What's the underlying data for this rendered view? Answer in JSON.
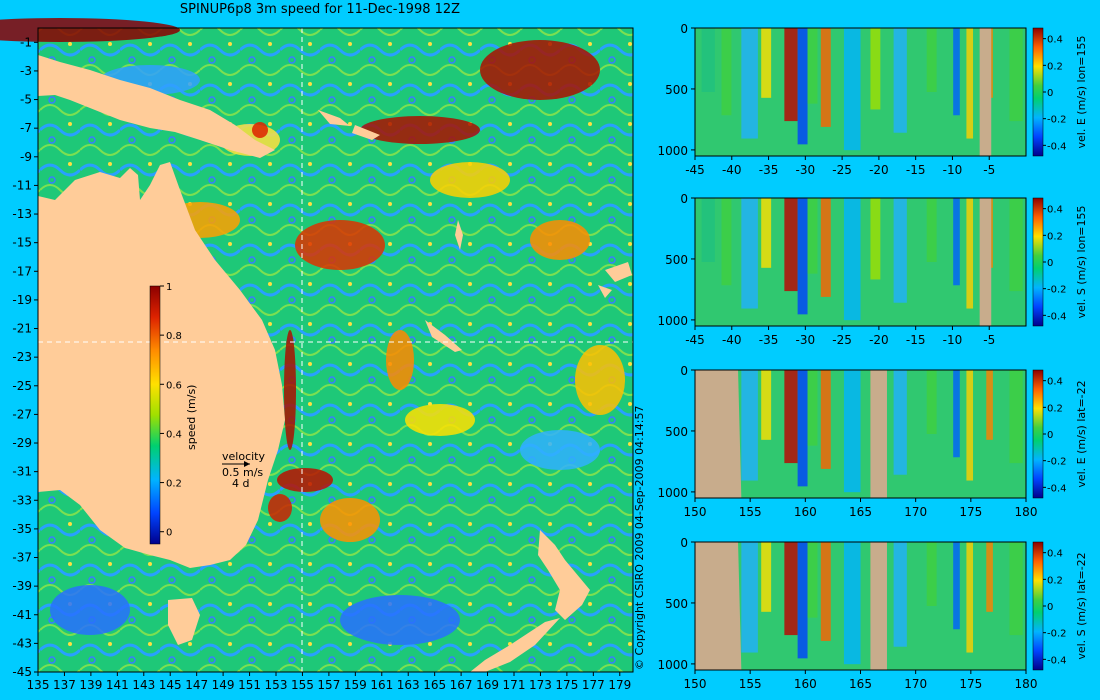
{
  "title": "SPINUP6p8 3m speed for 11-Dec-1998 12Z",
  "copyright": "© Copyright CSIRO 2009   04-Sep-2009 04:14:57",
  "colors": {
    "background": "#00ccff",
    "land": "#ffcc99",
    "ocean_base": "#00c8a0",
    "section_land": "#c8ac8c"
  },
  "map": {
    "lon_ticks": [
      "135",
      "137",
      "139",
      "141",
      "143",
      "145",
      "147",
      "149",
      "151",
      "153",
      "155",
      "157",
      "159",
      "161",
      "163",
      "165",
      "167",
      "169",
      "171",
      "173",
      "175",
      "177",
      "179"
    ],
    "lat_ticks": [
      "-1",
      "-3",
      "-5",
      "-7",
      "-9",
      "-11",
      "-13",
      "-15",
      "-17",
      "-19",
      "-21",
      "-23",
      "-25",
      "-27",
      "-29",
      "-31",
      "-33",
      "-35",
      "-37",
      "-39",
      "-41",
      "-43",
      "-45"
    ],
    "colorbar": {
      "label": "speed (m/s)",
      "ticks": [
        "1",
        "0.8",
        "0.6",
        "0.4",
        "0.2",
        "0"
      ]
    },
    "velocity_key": {
      "title": "velocity",
      "speed": "0.5 m/s",
      "duration": "4 d"
    },
    "crosshair": {
      "lon": 155,
      "lat": -22
    }
  },
  "panels": [
    {
      "name": "E-lon155",
      "label": "vel. E (m/s) lon=155",
      "x_ticks": [
        "-45",
        "-40",
        "-35",
        "-30",
        "-25",
        "-20",
        "-15",
        "-10",
        "-5"
      ],
      "y_ticks": [
        "0",
        "500",
        "1000"
      ],
      "cb_ticks": [
        "0.4",
        "0.2",
        "0",
        "-0.2",
        "-0.4"
      ]
    },
    {
      "name": "S-lon155",
      "label": "vel. S (m/s) lon=155",
      "x_ticks": [
        "-45",
        "-40",
        "-35",
        "-30",
        "-25",
        "-20",
        "-15",
        "-10",
        "-5"
      ],
      "y_ticks": [
        "0",
        "500",
        "1000"
      ],
      "cb_ticks": [
        "0.4",
        "0.2",
        "0",
        "-0.2",
        "-0.4"
      ]
    },
    {
      "name": "E-lat22",
      "label": "vel. E (m/s) lat=-22",
      "x_ticks": [
        "150",
        "155",
        "160",
        "165",
        "170",
        "175",
        "180"
      ],
      "y_ticks": [
        "0",
        "500",
        "1000"
      ],
      "cb_ticks": [
        "0.4",
        "0.2",
        "0",
        "-0.2",
        "-0.4"
      ]
    },
    {
      "name": "S-lat22",
      "label": "vel. S (m/s) lat=-22",
      "x_ticks": [
        "150",
        "155",
        "160",
        "165",
        "170",
        "175",
        "180"
      ],
      "y_ticks": [
        "0",
        "500",
        "1000"
      ],
      "cb_ticks": [
        "0.4",
        "0.2",
        "0",
        "-0.2",
        "-0.4"
      ]
    }
  ]
}
